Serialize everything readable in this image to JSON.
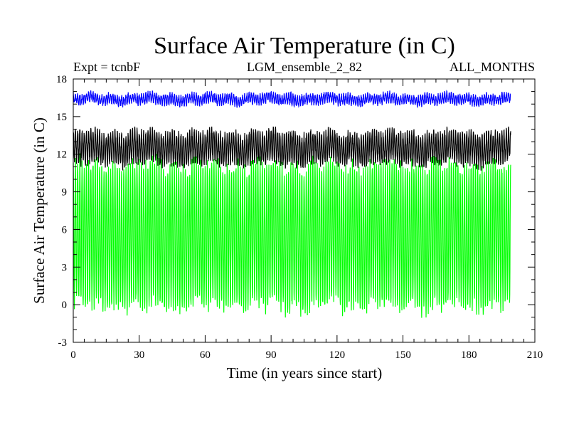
{
  "chart_data": {
    "type": "line",
    "title": "Surface Air Temperature (in C)",
    "subtitle_left": "Expt = tcnbF",
    "subtitle_center": "LGM_ensemble_2_82",
    "subtitle_right": "ALL_MONTHS",
    "xlabel": "Time (in years since start)",
    "ylabel": "Surface Air Temperature (in C)",
    "xlim": [
      0,
      210
    ],
    "ylim": [
      -3,
      18
    ],
    "xticks": [
      0,
      30,
      60,
      90,
      120,
      150,
      180,
      210
    ],
    "yticks": [
      -3,
      0,
      3,
      6,
      9,
      12,
      15,
      18
    ],
    "grid": false,
    "x_range": [
      0,
      199
    ],
    "samples_per_year": 12,
    "series": [
      {
        "name": "green",
        "color": "#00ff00",
        "mean": 5.5,
        "amplitude": 5.6,
        "noise": 0.6,
        "min": -1.8,
        "max": 12.3
      },
      {
        "name": "black",
        "color": "#000000",
        "mean": 12.5,
        "amplitude": 1.2,
        "noise": 0.35,
        "min": 10.3,
        "max": 14.2
      },
      {
        "name": "blue",
        "color": "#0000ff",
        "mean": 16.4,
        "amplitude": 0.35,
        "noise": 0.2,
        "min": 15.5,
        "max": 17.4
      }
    ]
  }
}
